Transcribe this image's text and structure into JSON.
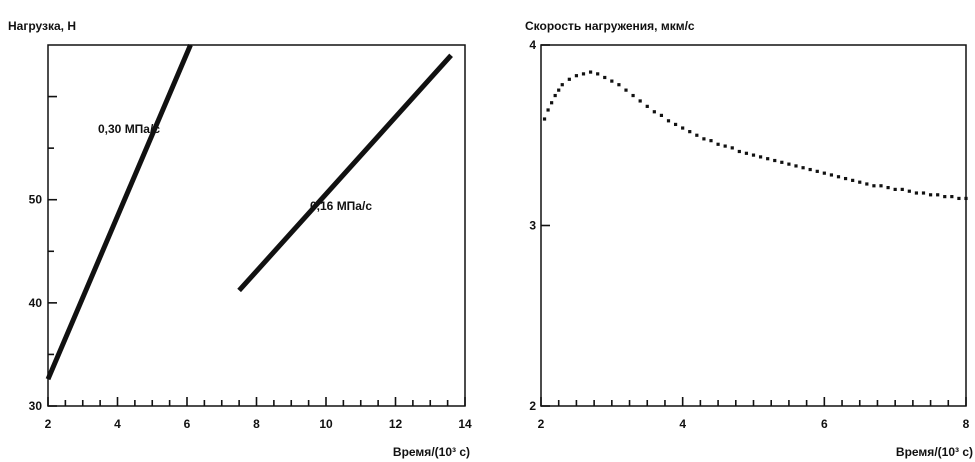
{
  "chart_data": [
    {
      "type": "line",
      "title": "Нагрузка, Н",
      "xlabel": "Время/(10³ с)",
      "ylabel": "",
      "xlim": [
        2,
        14
      ],
      "ylim": [
        30,
        65
      ],
      "xticks": [
        2,
        4,
        6,
        8,
        10,
        12,
        14
      ],
      "yticks": [
        30,
        40,
        50
      ],
      "grid": false,
      "series": [
        {
          "name": "0,30 МПа/с",
          "x": [
            2.0,
            6.1
          ],
          "y": [
            32.6,
            65.0
          ]
        },
        {
          "name": "0,16 МПа/с",
          "x": [
            7.5,
            13.6
          ],
          "y": [
            41.2,
            64.0
          ]
        }
      ]
    },
    {
      "type": "scatter",
      "title": "Скорость нагружения, мкм/с",
      "xlabel": "Время/(10³ с)",
      "ylabel": "",
      "xlim": [
        2,
        8
      ],
      "ylim": [
        2,
        4
      ],
      "xticks": [
        2,
        4,
        6,
        8
      ],
      "yticks": [
        2,
        3,
        4
      ],
      "grid": false,
      "series": [
        {
          "x": [
            2.05,
            2.1,
            2.15,
            2.2,
            2.25,
            2.3,
            2.4,
            2.5,
            2.6,
            2.7,
            2.8,
            2.9,
            3.0,
            3.1,
            3.2,
            3.3,
            3.4,
            3.5,
            3.6,
            3.7,
            3.8,
            3.9,
            4.0,
            4.1,
            4.2,
            4.3,
            4.4,
            4.5,
            4.6,
            4.7,
            4.8,
            4.9,
            5.0,
            5.1,
            5.2,
            5.3,
            5.4,
            5.5,
            5.6,
            5.7,
            5.8,
            5.9,
            6.0,
            6.1,
            6.2,
            6.3,
            6.4,
            6.5,
            6.6,
            6.7,
            6.8,
            6.9,
            7.0,
            7.1,
            7.2,
            7.3,
            7.4,
            7.5,
            7.6,
            7.7,
            7.8,
            7.9,
            8.0
          ],
          "y": [
            3.59,
            3.64,
            3.68,
            3.72,
            3.75,
            3.78,
            3.81,
            3.83,
            3.84,
            3.85,
            3.84,
            3.82,
            3.8,
            3.78,
            3.75,
            3.72,
            3.69,
            3.66,
            3.63,
            3.61,
            3.58,
            3.56,
            3.54,
            3.52,
            3.5,
            3.48,
            3.47,
            3.45,
            3.44,
            3.43,
            3.41,
            3.4,
            3.39,
            3.38,
            3.37,
            3.36,
            3.35,
            3.34,
            3.33,
            3.32,
            3.31,
            3.3,
            3.29,
            3.28,
            3.27,
            3.26,
            3.25,
            3.24,
            3.23,
            3.22,
            3.22,
            3.21,
            3.2,
            3.2,
            3.19,
            3.18,
            3.18,
            3.17,
            3.17,
            3.16,
            3.16,
            3.15,
            3.15
          ]
        }
      ]
    }
  ]
}
